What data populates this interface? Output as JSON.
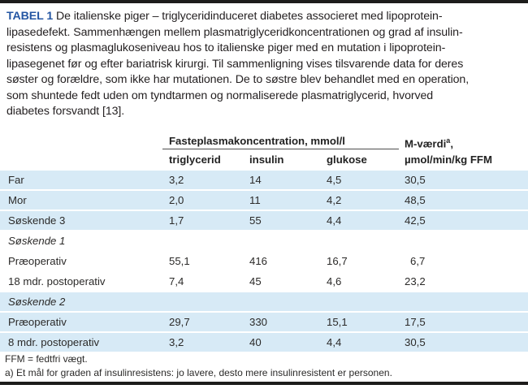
{
  "colors": {
    "accent_blue": "#2456a3",
    "row_blue": "#d7eaf6",
    "rule_dark": "#1d1c1b"
  },
  "title": {
    "label": "TABEL 1",
    "lines": [
      "De italienske piger – triglyceridinduceret diabetes associeret med lipoprotein-",
      "lipasedefekt. Sammenhængen mellem plasmatriglyceridkoncentrationen og grad af insulin-",
      "resistens og plasmaglukoseniveau hos to italienske piger med en mutation i lipoprotein-",
      "lipasegenet før og efter bariatrisk kirurgi. Til sammenligning vises tilsvarende data for deres",
      "søster og forældre, som ikke har mutationen. De to søstre blev behandlet med en operation,",
      "som shuntede fedt uden om tyndtarmen og normaliserede plasmatriglycerid, hvorved",
      "diabetes forsvandt [13]."
    ]
  },
  "table": {
    "group_header": "Fasteplasmakoncentration, mmol/l",
    "subcolumns": [
      "triglycerid",
      "insulin",
      "glukose"
    ],
    "mvalue": {
      "base": "M-værdi",
      "sup": "a",
      "rest": ",",
      "line2": "µmol/min/kg FFM"
    },
    "rows": [
      {
        "label": "Far",
        "group_header": false,
        "values": [
          "3,2",
          "14",
          "4,5",
          "30,5"
        ]
      },
      {
        "label": "Mor",
        "group_header": false,
        "values": [
          "2,0",
          "11",
          "4,2",
          "48,5"
        ]
      },
      {
        "label": "Søskende 3",
        "group_header": false,
        "values": [
          "1,7",
          "55",
          "4,4",
          "42,5"
        ]
      },
      {
        "label": "Søskende 1",
        "group_header": true,
        "values": [
          "",
          "",
          "",
          ""
        ]
      },
      {
        "label": "Præoperativ",
        "group_header": false,
        "values": [
          "55,1",
          "416",
          "16,7",
          "6,7"
        ]
      },
      {
        "label": "18 mdr. postoperativ",
        "group_header": false,
        "values": [
          "7,4",
          "45",
          "4,6",
          "23,2"
        ]
      },
      {
        "label": "Søskende 2",
        "group_header": true,
        "values": [
          "",
          "",
          "",
          ""
        ]
      },
      {
        "label": "Præoperativ",
        "group_header": false,
        "values": [
          "29,7",
          "330",
          "15,1",
          "17,5"
        ]
      },
      {
        "label": "8 mdr. postoperativ",
        "group_header": false,
        "values": [
          "3,2",
          "40",
          "4,4",
          "30,5"
        ]
      }
    ]
  },
  "footnotes": [
    "FFM = fedtfri vægt.",
    "a) Et mål for graden af insulinresistens: jo lavere, desto mere insulinresistent er personen."
  ]
}
